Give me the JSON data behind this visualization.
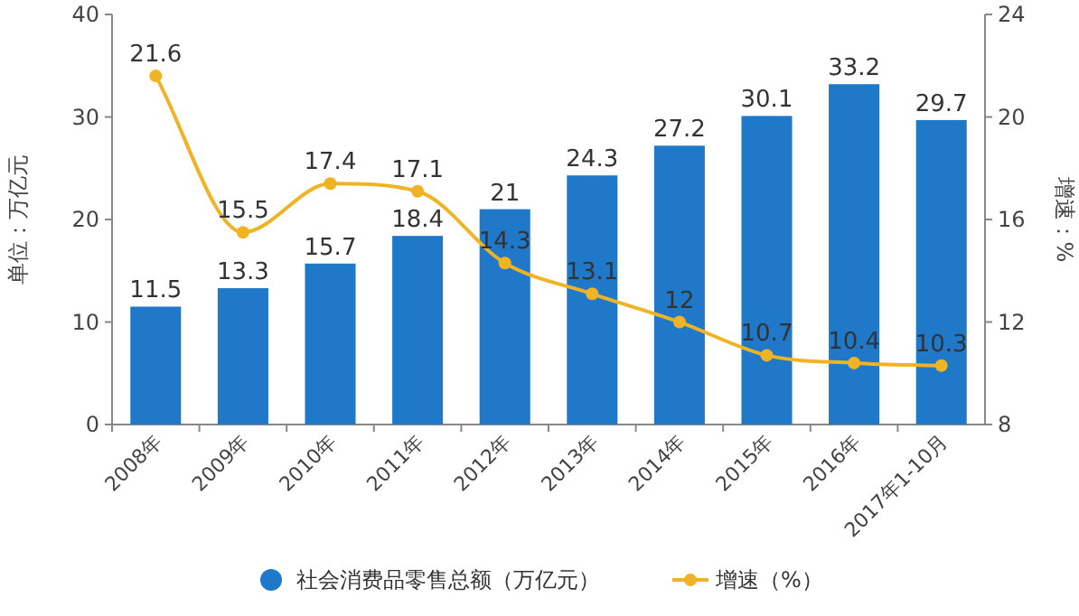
{
  "chart_data": {
    "type": "bar",
    "categories": [
      "2008年",
      "2009年",
      "2010年",
      "2011年",
      "2012年",
      "2013年",
      "2014年",
      "2015年",
      "2016年",
      "2017年1-10月"
    ],
    "series": [
      {
        "name": "社会消费品零售总额（万亿元）",
        "color": "#1f78c8",
        "values": [
          11.5,
          13.3,
          15.7,
          18.4,
          21,
          24.3,
          27.2,
          30.1,
          33.2,
          29.7
        ]
      },
      {
        "name": "增速（%）",
        "type": "line",
        "axis": "y2",
        "color": "#f0b323",
        "marker": "circle",
        "values": [
          21.6,
          15.5,
          17.4,
          17.1,
          14.3,
          13.1,
          12,
          10.7,
          10.4,
          10.3
        ]
      }
    ],
    "ylabel": "单位：万亿元",
    "y2label": "增速：%",
    "ylim": [
      0,
      40
    ],
    "yticks": [
      0,
      10,
      20,
      30,
      40
    ],
    "y2lim": [
      8,
      24
    ],
    "y2ticks": [
      8,
      12,
      16,
      20,
      24
    ],
    "data_labels": true,
    "legend": "bottom",
    "grid": false
  }
}
